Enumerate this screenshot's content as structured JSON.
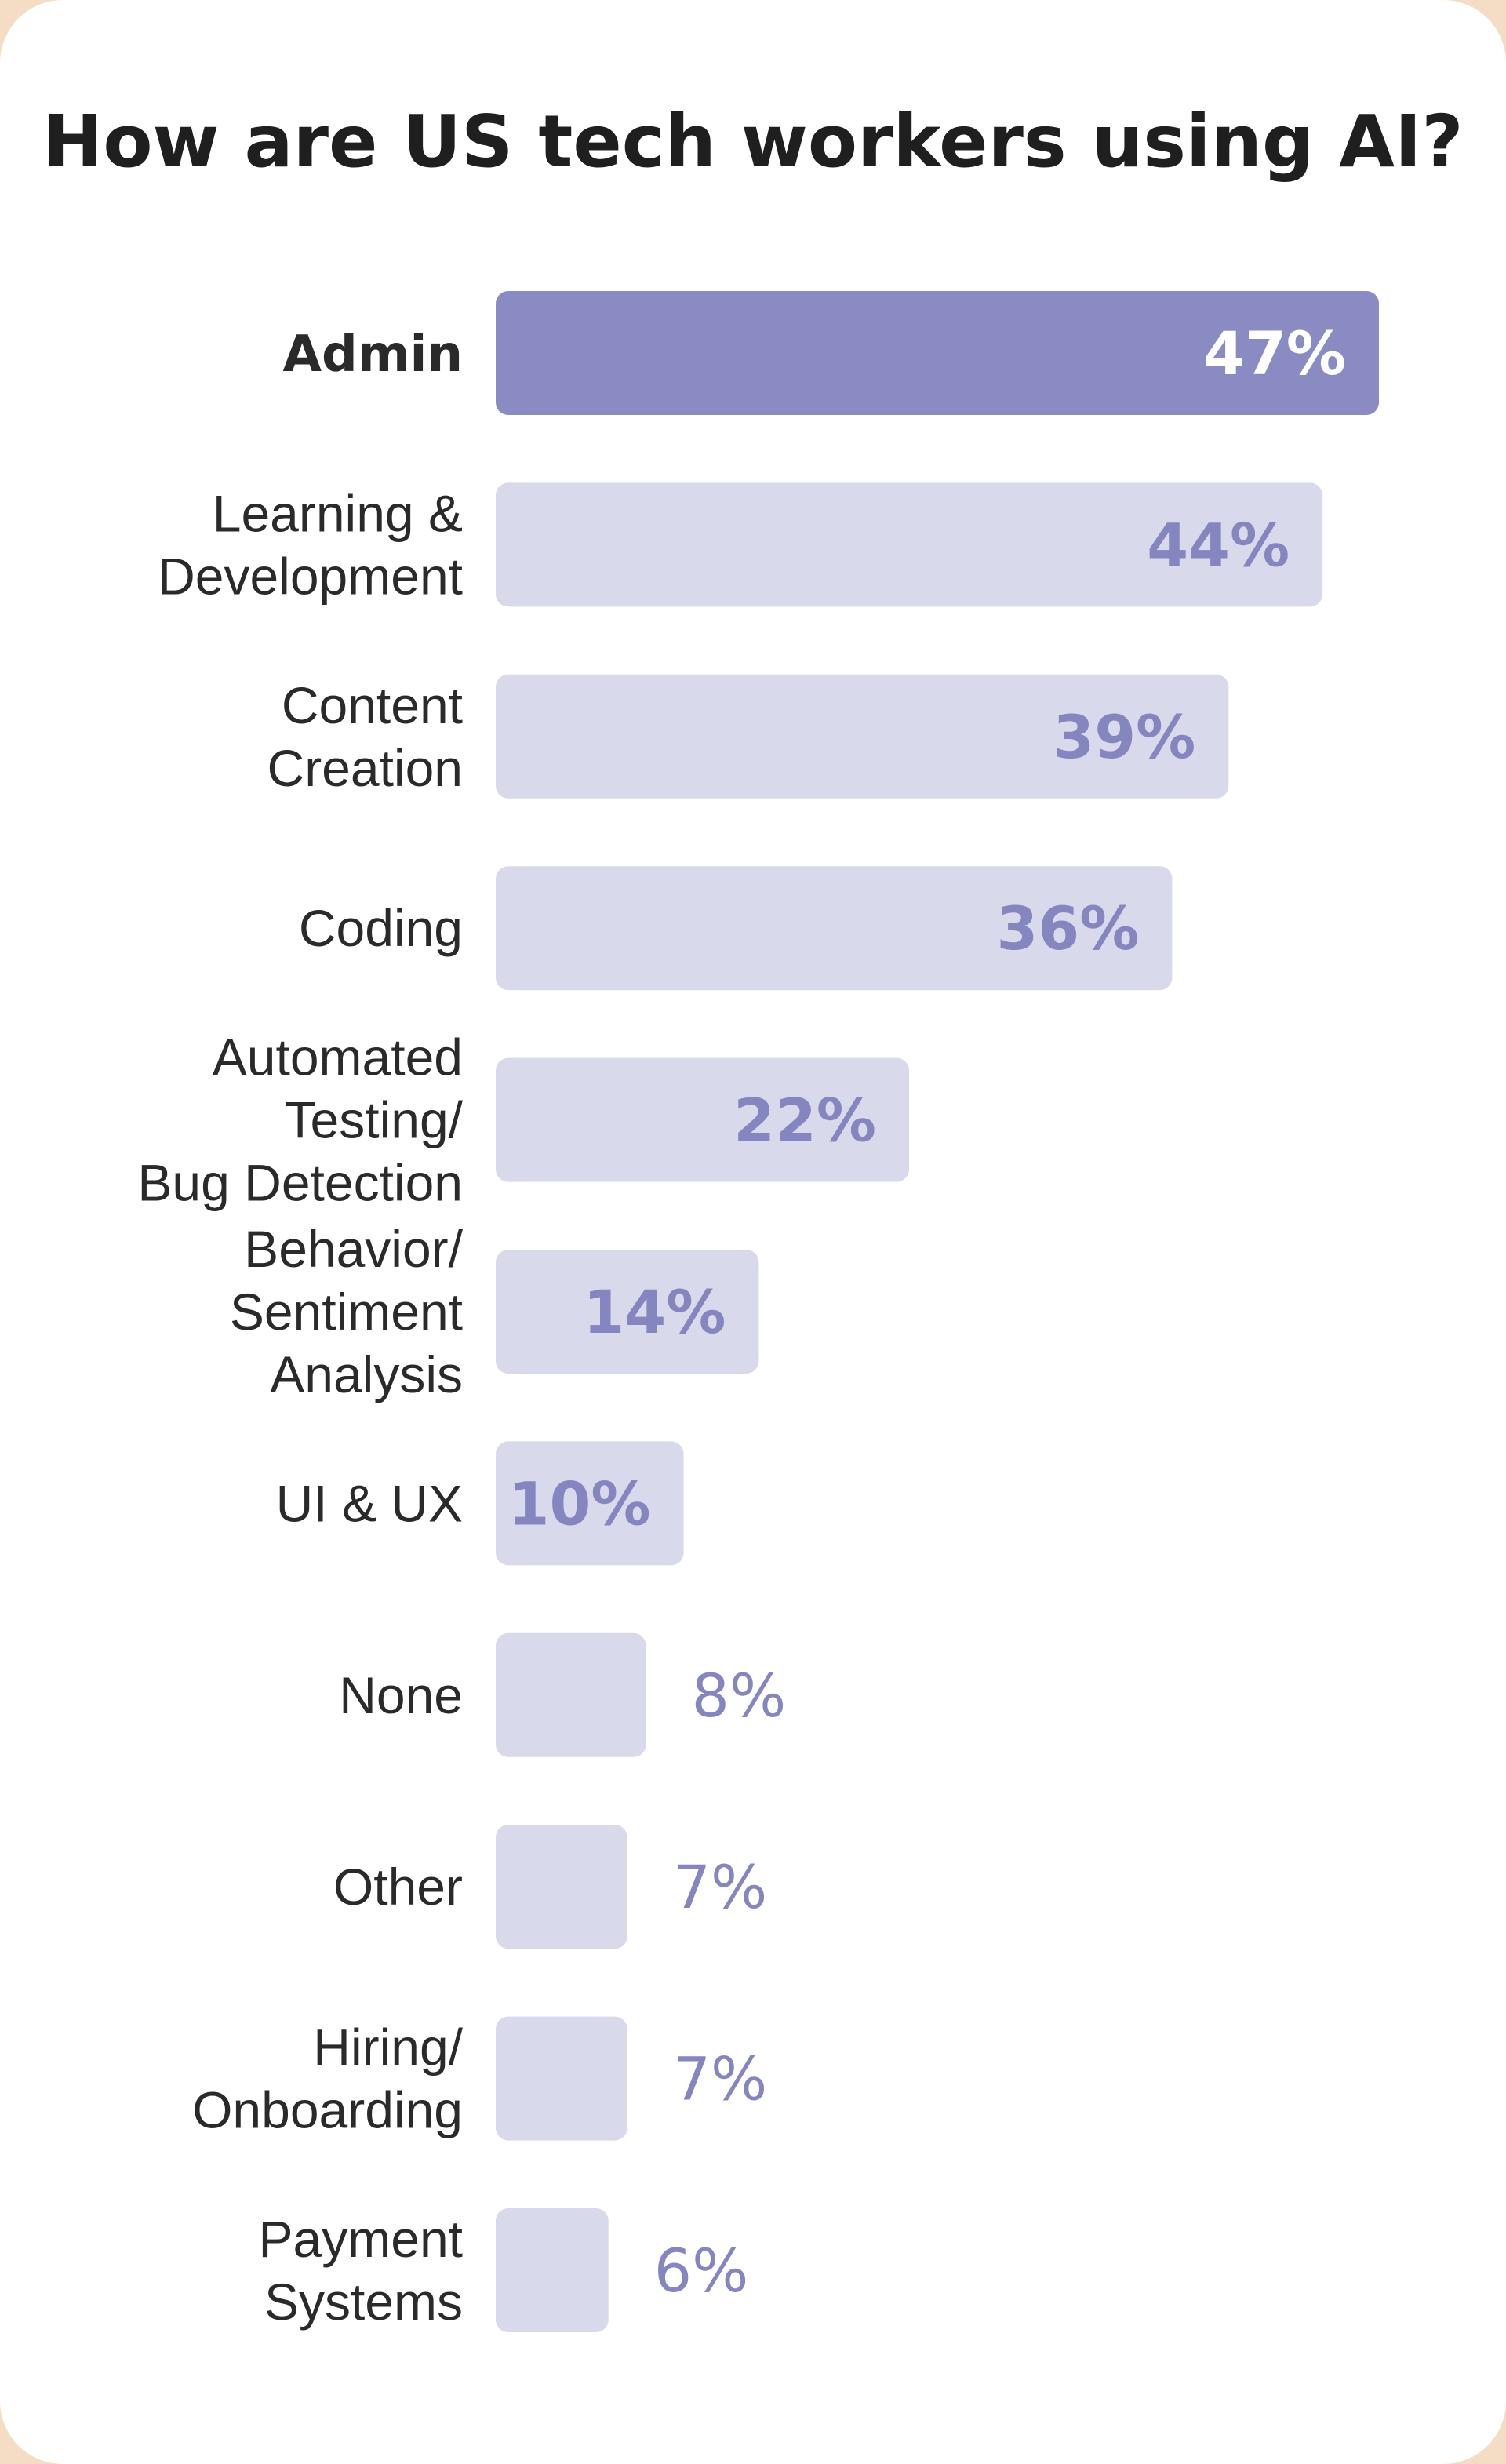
{
  "chart_data": {
    "type": "bar",
    "orientation": "horizontal",
    "title": "How are US tech workers using AI?",
    "categories": [
      [
        "Admin"
      ],
      [
        "Learning &",
        "Development"
      ],
      [
        "Content",
        "Creation"
      ],
      [
        "Coding"
      ],
      [
        "Automated",
        "Testing/",
        "Bug Detection"
      ],
      [
        "Behavior/",
        "Sentiment",
        "Analysis"
      ],
      [
        "UI & UX"
      ],
      [
        "None"
      ],
      [
        "Other"
      ],
      [
        "Hiring/",
        "Onboarding"
      ],
      [
        "Payment",
        "Systems"
      ]
    ],
    "values": [
      47,
      44,
      39,
      36,
      22,
      14,
      10,
      8,
      7,
      7,
      6
    ],
    "value_labels": [
      "47%",
      "44%",
      "39%",
      "36%",
      "22%",
      "14%",
      "10%",
      "8%",
      "7%",
      "7%",
      "6%"
    ],
    "xlabel": "",
    "ylabel": "",
    "xlim": [
      0,
      47
    ],
    "grid": false,
    "highlight_index": 0,
    "colors": {
      "highlight_bar": "#8b8bc3",
      "bar": "#d9d9ec",
      "highlight_label": "#ffffff",
      "value_label": "#8585c0",
      "background": "#f5dcc4",
      "card": "#ffffff"
    }
  }
}
